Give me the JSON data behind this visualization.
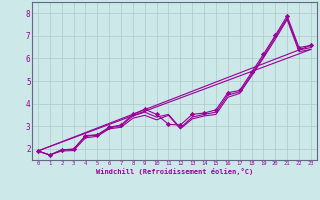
{
  "xlabel": "Windchill (Refroidissement éolien,°C)",
  "bg_color": "#cce8e8",
  "line_color": "#990099",
  "xlim": [
    -0.5,
    23.5
  ],
  "ylim": [
    1.5,
    8.5
  ],
  "xticks": [
    0,
    1,
    2,
    3,
    4,
    5,
    6,
    7,
    8,
    9,
    10,
    11,
    12,
    13,
    14,
    15,
    16,
    17,
    18,
    19,
    20,
    21,
    22,
    23
  ],
  "yticks": [
    2,
    3,
    4,
    5,
    6,
    7,
    8
  ],
  "grid_color": "#aacccc",
  "series_with_markers": [
    [
      1.9,
      1.72,
      1.95,
      1.98,
      2.58,
      2.62,
      2.95,
      3.05,
      3.52,
      3.75,
      3.52,
      3.08,
      3.05,
      3.52,
      3.58,
      3.72,
      4.48,
      4.58,
      5.38,
      6.18,
      7.02,
      7.88,
      6.48,
      6.58
    ]
  ],
  "series_plain": [
    [
      1.9,
      1.72,
      1.95,
      1.98,
      2.55,
      2.6,
      2.92,
      3.02,
      3.45,
      3.62,
      3.4,
      3.52,
      2.92,
      3.4,
      3.52,
      3.62,
      4.38,
      4.52,
      5.28,
      6.08,
      6.95,
      7.78,
      6.38,
      6.48
    ],
    [
      1.9,
      1.72,
      1.9,
      1.92,
      2.48,
      2.55,
      2.88,
      2.95,
      3.35,
      3.48,
      3.28,
      3.48,
      2.88,
      3.32,
      3.45,
      3.52,
      4.28,
      4.45,
      5.22,
      6.02,
      6.85,
      7.72,
      6.3,
      6.4
    ]
  ],
  "series_straight": [
    [
      [
        0,
        23
      ],
      [
        1.9,
        6.58
      ]
    ],
    [
      [
        0,
        23
      ],
      [
        1.9,
        6.4
      ]
    ]
  ]
}
